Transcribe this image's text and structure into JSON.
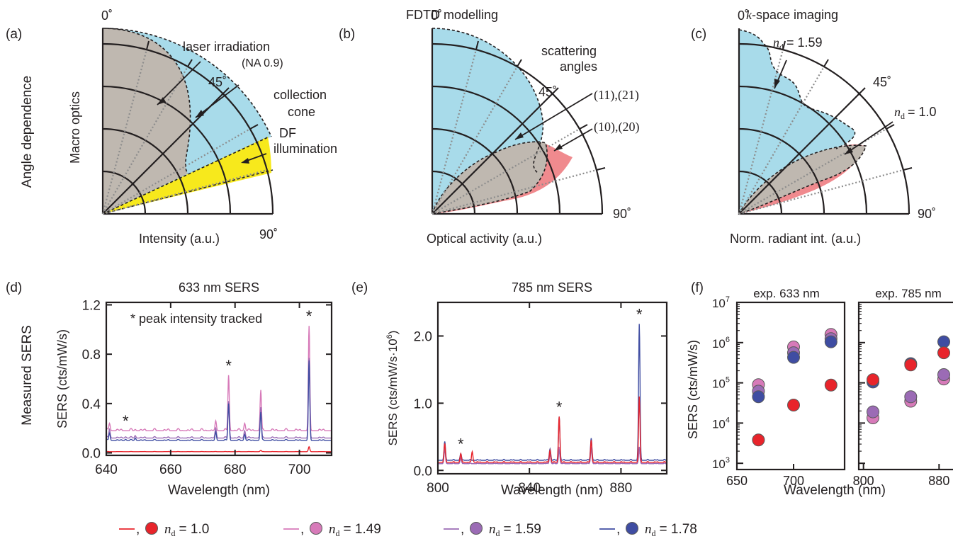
{
  "colors": {
    "nd_1_0": "#e8242b",
    "nd_1_49": "#d77ab9",
    "nd_1_59": "#9b6bb5",
    "nd_1_78": "#3f4da2",
    "beige": "#bfb8b0",
    "light_blue": "#a8dbea",
    "pink": "#f08a8e",
    "yellow": "#f7e91c"
  },
  "panels": {
    "a": "(a)",
    "b": "(b)",
    "c": "(c)",
    "d": "(d)",
    "e": "(e)",
    "f": "(f)"
  },
  "row_labels": {
    "top": "Angle dependence",
    "bottom": "Measured SERS"
  },
  "polar": {
    "a": {
      "ylabel": "Macro optics",
      "xlabel": "Intensity (a.u.)",
      "angle_0": "0˚",
      "angle_45": "45˚",
      "angle_90": "90˚",
      "ann1": "laser irradiation",
      "ann1b": "(NA 0.9)",
      "ann2": "collection",
      "ann2b": "cone",
      "ann3": "DF",
      "ann3b": "illumination"
    },
    "b": {
      "title": "FDTD modelling",
      "xlabel": "Optical activity (a.u.)",
      "angle_0": "0˚",
      "angle_45": "45˚",
      "angle_90": "90˚",
      "ann1": "scattering",
      "ann1b": "angles",
      "ann2": "(11),(21)",
      "ann3": "(10),(20)"
    },
    "c": {
      "title_k": "k",
      "title": "-space imaging",
      "xlabel": "Norm. radiant int. (a.u.)",
      "angle_0": "0˚",
      "angle_45": "45˚",
      "angle_90": "90˚",
      "ann1": "= 1.59",
      "ann2": "= 1.0"
    }
  },
  "chart_data": [
    {
      "type": "line",
      "panel": "d",
      "title": "633 nm SERS",
      "xlabel": "Wavelength (nm)",
      "ylabel": "SERS (cts/mW/s)",
      "xlim": [
        640,
        710
      ],
      "ylim": [
        -0.02,
        1.22
      ],
      "xticks": [
        "640",
        "660",
        "680",
        "700"
      ],
      "yticks": [
        "0.0",
        "0.4",
        "0.8",
        "1.2"
      ],
      "annotation": "* peak intensity tracked",
      "peaks": [
        646,
        678,
        703
      ],
      "series": [
        {
          "name": "n_d = 1.0",
          "baseline": 0.01,
          "peaks": [
            [
              678,
              0.01
            ],
            [
              688,
              0.02
            ],
            [
              703,
              0.05
            ]
          ]
        },
        {
          "name": "n_d = 1.49",
          "baseline": 0.18,
          "peaks": [
            [
              641,
              0.24
            ],
            [
              646,
              0.18
            ],
            [
              649,
              0.19
            ],
            [
              674,
              0.26
            ],
            [
              678,
              0.63
            ],
            [
              683,
              0.24
            ],
            [
              688,
              0.51
            ],
            [
              703,
              1.03
            ]
          ]
        },
        {
          "name": "n_d = 1.59",
          "baseline": 0.12,
          "peaks": [
            [
              641,
              0.19
            ],
            [
              646,
              0.13
            ],
            [
              649,
              0.14
            ],
            [
              674,
              0.2
            ],
            [
              678,
              0.42
            ],
            [
              683,
              0.18
            ],
            [
              688,
              0.37
            ],
            [
              703,
              0.77
            ]
          ]
        },
        {
          "name": "n_d = 1.78",
          "baseline": 0.1,
          "peaks": [
            [
              641,
              0.16
            ],
            [
              646,
              0.11
            ],
            [
              649,
              0.12
            ],
            [
              674,
              0.17
            ],
            [
              678,
              0.4
            ],
            [
              683,
              0.15
            ],
            [
              688,
              0.33
            ],
            [
              703,
              0.75
            ]
          ]
        }
      ]
    },
    {
      "type": "line",
      "panel": "e",
      "title": "785 nm SERS",
      "xlabel": "Wavelength (nm)",
      "ylabel": "SERS (cts/mW/s·10⁶)",
      "xlim": [
        800,
        900
      ],
      "ylim": [
        -0.05,
        2.5
      ],
      "xticks": [
        "800",
        "840",
        "880"
      ],
      "yticks": [
        "0.0",
        "1.0",
        "2.0"
      ],
      "peaks": [
        810,
        853,
        888
      ],
      "series": [
        {
          "name": "n_d = 1.0",
          "baseline": 0.12,
          "peaks": [
            [
              803,
              0.4
            ],
            [
              810,
              0.25
            ],
            [
              815,
              0.28
            ],
            [
              849,
              0.3
            ],
            [
              853,
              0.8
            ],
            [
              867,
              0.45
            ],
            [
              888,
              1.1
            ]
          ]
        },
        {
          "name": "n_d = 1.49",
          "baseline": 0.1,
          "peaks": [
            [
              803,
              0.35
            ],
            [
              810,
              0.2
            ],
            [
              849,
              0.25
            ],
            [
              853,
              0.35
            ],
            [
              867,
              0.35
            ],
            [
              888,
              0.3
            ]
          ]
        },
        {
          "name": "n_d = 1.59",
          "baseline": 0.1,
          "peaks": [
            [
              803,
              0.32
            ],
            [
              810,
              0.18
            ],
            [
              849,
              0.24
            ],
            [
              853,
              0.3
            ],
            [
              867,
              0.33
            ],
            [
              888,
              0.35
            ]
          ]
        },
        {
          "name": "n_d = 1.78",
          "baseline": 0.15,
          "peaks": [
            [
              803,
              0.43
            ],
            [
              810,
              0.25
            ],
            [
              849,
              0.32
            ],
            [
              853,
              0.8
            ],
            [
              867,
              0.48
            ],
            [
              888,
              2.18
            ]
          ]
        }
      ]
    },
    {
      "type": "scatter",
      "panel": "f",
      "ylabel": "SERS (cts/mW/s)",
      "xlabel": "Wavelength (nm)",
      "yscale": "log",
      "ylim": [
        700,
        10000000
      ],
      "yticks": [
        "10",
        "10",
        "10",
        "10",
        "10"
      ],
      "ytick_exps": [
        "3",
        "4",
        "5",
        "6",
        "7"
      ],
      "subplots": [
        {
          "title": "exp. 633 nm",
          "xlim": [
            650,
            745
          ],
          "xticks": [
            "650",
            "700"
          ],
          "series": [
            {
              "name": "n_d = 1.0",
              "points": [
                [
                  669,
                  3800
                ],
                [
                  700,
                  28000
                ],
                [
                  733,
                  88000
                ]
              ]
            },
            {
              "name": "n_d = 1.49",
              "points": [
                [
                  669,
                  90000
                ],
                [
                  700,
                  780000
                ],
                [
                  733,
                  1600000
                ]
              ]
            },
            {
              "name": "n_d = 1.59",
              "points": [
                [
                  669,
                  62000
                ],
                [
                  700,
                  560000
                ],
                [
                  733,
                  1250000
                ]
              ]
            },
            {
              "name": "n_d = 1.78",
              "points": [
                [
                  669,
                  45000
                ],
                [
                  700,
                  430000
                ],
                [
                  733,
                  1050000
                ]
              ]
            }
          ]
        },
        {
          "title": "exp. 785 nm",
          "xlim": [
            795,
            900
          ],
          "xticks": [
            "800",
            "880"
          ],
          "series": [
            {
              "name": "n_d = 1.0",
              "points": [
                [
                  810,
                  120000
                ],
                [
                  850,
                  280000
                ],
                [
                  885,
                  560000
                ]
              ]
            },
            {
              "name": "n_d = 1.49",
              "points": [
                [
                  810,
                  13500
                ],
                [
                  850,
                  35000
                ],
                [
                  885,
                  125000
                ]
              ]
            },
            {
              "name": "n_d = 1.59",
              "points": [
                [
                  810,
                  19000
                ],
                [
                  850,
                  45000
                ],
                [
                  885,
                  160000
                ]
              ]
            },
            {
              "name": "n_d = 1.78",
              "points": [
                [
                  810,
                  105000
                ],
                [
                  850,
                  300000
                ],
                [
                  885,
                  1050000
                ]
              ]
            }
          ]
        }
      ]
    }
  ],
  "legend": [
    {
      "sep": "—, ",
      "label": "= 1.0"
    },
    {
      "sep": "—, ",
      "label": "= 1.49"
    },
    {
      "sep": "—, ",
      "label": "= 1.59"
    },
    {
      "sep": "—, ",
      "label": "= 1.78"
    }
  ],
  "nd_symbol": "n",
  "nd_sub": "d"
}
